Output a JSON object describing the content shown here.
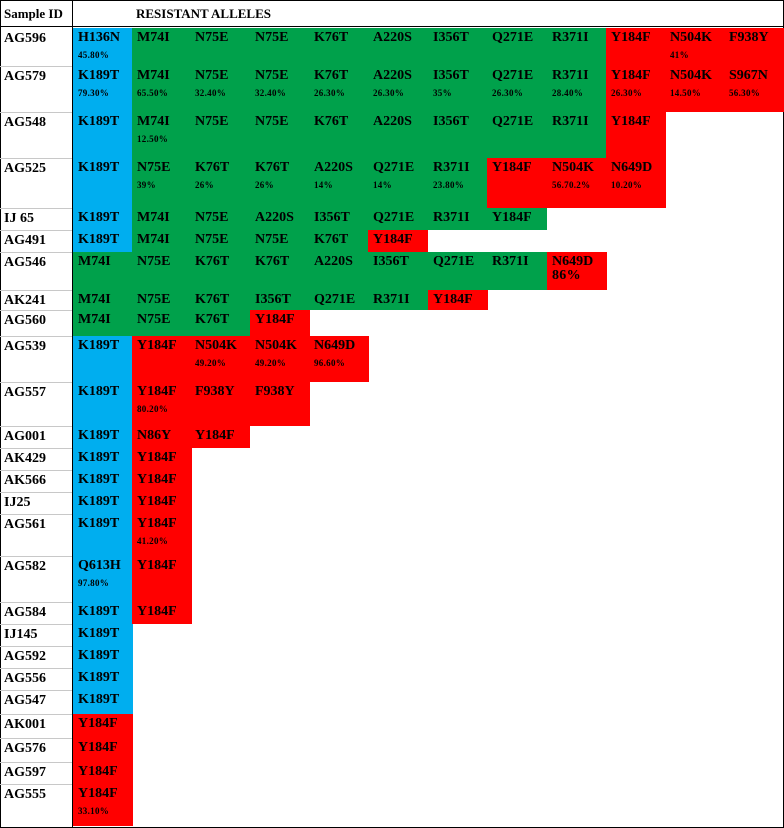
{
  "colors": {
    "green": "#00a14b",
    "blue": "#00aeef",
    "red": "#ff0000"
  },
  "header": {
    "sample_id": "Sample ID",
    "resistant_alleles": "RESISTANT  ALLELES"
  },
  "rows": [
    {
      "id": "AG596",
      "cells": [
        {
          "m": "H136N",
          "c": "blue",
          "p": "45.80%"
        },
        {
          "m": "M74I",
          "c": "green"
        },
        {
          "m": "N75E",
          "c": "green"
        },
        {
          "m": "N75E",
          "c": "green"
        },
        {
          "m": "K76T",
          "c": "green"
        },
        {
          "m": "A220S",
          "c": "green"
        },
        {
          "m": "I356T",
          "c": "green"
        },
        {
          "m": "Q271E",
          "c": "green"
        },
        {
          "m": "R371I",
          "c": "green"
        },
        {
          "m": "Y184F",
          "c": "red"
        },
        {
          "m": "N504K",
          "c": "red",
          "p": "41%"
        },
        {
          "m": "F938Y",
          "c": "red"
        }
      ]
    },
    {
      "id": "AG579",
      "cells": [
        {
          "m": "K189T",
          "c": "blue",
          "p": "79.30%"
        },
        {
          "m": "M74I",
          "c": "green",
          "p": "65.50%"
        },
        {
          "m": "N75E",
          "c": "green",
          "p": "32.40%"
        },
        {
          "m": "N75E",
          "c": "green",
          "p": "32.40%"
        },
        {
          "m": "K76T",
          "c": "green",
          "p": "26.30%"
        },
        {
          "m": "A220S",
          "c": "green",
          "p": "26.30%"
        },
        {
          "m": "I356T",
          "c": "green",
          "p": "35%"
        },
        {
          "m": "Q271E",
          "c": "green",
          "p": "26.30%"
        },
        {
          "m": "R371I",
          "c": "green",
          "p": "28.40%"
        },
        {
          "m": "Y184F",
          "c": "red",
          "p": "26.30%"
        },
        {
          "m": "N504K",
          "c": "red",
          "p": "14.50%"
        },
        {
          "m": "S967N",
          "c": "red",
          "p": "56.30%"
        }
      ]
    },
    {
      "id": "AG548",
      "cells": [
        {
          "m": "K189T",
          "c": "blue"
        },
        {
          "m": "M74I",
          "c": "green",
          "p": "12.50%"
        },
        {
          "m": "N75E",
          "c": "green"
        },
        {
          "m": "N75E",
          "c": "green"
        },
        {
          "m": "K76T",
          "c": "green"
        },
        {
          "m": "A220S",
          "c": "green"
        },
        {
          "m": "I356T",
          "c": "green"
        },
        {
          "m": "Q271E",
          "c": "green"
        },
        {
          "m": "R371I",
          "c": "green"
        },
        {
          "m": "Y184F",
          "c": "red"
        }
      ]
    },
    {
      "id": "AG525",
      "cells": [
        {
          "m": "K189T",
          "c": "blue"
        },
        {
          "m": "N75E",
          "c": "green",
          "p": "39%"
        },
        {
          "m": "K76T",
          "c": "green",
          "p": "26%"
        },
        {
          "m": "K76T",
          "c": "green",
          "p": "26%"
        },
        {
          "m": "A220S",
          "c": "green",
          "p": "14%"
        },
        {
          "m": "Q271E",
          "c": "green",
          "p": "14%"
        },
        {
          "m": "R371I",
          "c": "green",
          "p": "23.80%"
        },
        {
          "m": "Y184F",
          "c": "red"
        },
        {
          "m": "N504K",
          "c": "red",
          "p": "56.70.2%"
        },
        {
          "m": "N649D",
          "c": "red",
          "p": "10.20%"
        }
      ]
    },
    {
      "id": "IJ 65",
      "cells": [
        {
          "m": "K189T",
          "c": "blue"
        },
        {
          "m": "M74I",
          "c": "green"
        },
        {
          "m": "N75E",
          "c": "green"
        },
        {
          "m": "A220S",
          "c": "green"
        },
        {
          "m": "I356T",
          "c": "green"
        },
        {
          "m": "Q271E",
          "c": "green"
        },
        {
          "m": "R371I",
          "c": "green"
        },
        {
          "m": "Y184F",
          "c": "green"
        }
      ]
    },
    {
      "id": "AG491",
      "cells": [
        {
          "m": "K189T",
          "c": "blue"
        },
        {
          "m": "M74I",
          "c": "green"
        },
        {
          "m": "N75E",
          "c": "green"
        },
        {
          "m": "N75E",
          "c": "green"
        },
        {
          "m": "K76T",
          "c": "green"
        },
        {
          "m": "Y184F",
          "c": "red"
        }
      ]
    },
    {
      "id": "AG546",
      "cells": [
        {
          "m": "M74I",
          "c": "green"
        },
        {
          "m": "N75E",
          "c": "green"
        },
        {
          "m": "K76T",
          "c": "green"
        },
        {
          "m": "K76T",
          "c": "green"
        },
        {
          "m": "A220S",
          "c": "green"
        },
        {
          "m": "I356T",
          "c": "green"
        },
        {
          "m": "Q271E",
          "c": "green"
        },
        {
          "m": "R371I",
          "c": "green"
        },
        {
          "m": "N649D",
          "c": "red",
          "p": "86%",
          "big": true
        }
      ]
    },
    {
      "id": "AK241",
      "cells": [
        {
          "m": "M74I",
          "c": "green"
        },
        {
          "m": "N75E",
          "c": "green"
        },
        {
          "m": "K76T",
          "c": "green"
        },
        {
          "m": "I356T",
          "c": "green"
        },
        {
          "m": "Q271E",
          "c": "green"
        },
        {
          "m": "R371I",
          "c": "green"
        },
        {
          "m": "Y184F",
          "c": "red"
        }
      ]
    },
    {
      "id": "AG560",
      "cells": [
        {
          "m": "M74I",
          "c": "green"
        },
        {
          "m": "N75E",
          "c": "green"
        },
        {
          "m": "K76T",
          "c": "green"
        },
        {
          "m": "Y184F",
          "c": "red"
        }
      ]
    },
    {
      "id": "AG539",
      "cells": [
        {
          "m": "K189T",
          "c": "blue"
        },
        {
          "m": "Y184F",
          "c": "red"
        },
        {
          "m": "N504K",
          "c": "red",
          "p": "49.20%"
        },
        {
          "m": "N504K",
          "c": "red",
          "p": "49.20%"
        },
        {
          "m": "N649D",
          "c": "red",
          "p": "96.60%"
        }
      ]
    },
    {
      "id": "AG557",
      "cells": [
        {
          "m": "K189T",
          "c": "blue"
        },
        {
          "m": "Y184F",
          "c": "red",
          "p": "80.20%"
        },
        {
          "m": "F938Y",
          "c": "red"
        },
        {
          "m": "F938Y",
          "c": "red"
        }
      ]
    },
    {
      "id": "AG001",
      "cells": [
        {
          "m": "K189T",
          "c": "blue"
        },
        {
          "m": "N86Y",
          "c": "red"
        },
        {
          "m": "Y184F",
          "c": "red"
        }
      ]
    },
    {
      "id": "AK429",
      "cells": [
        {
          "m": "K189T",
          "c": "blue"
        },
        {
          "m": "Y184F",
          "c": "red"
        }
      ]
    },
    {
      "id": "AK566",
      "cells": [
        {
          "m": "K189T",
          "c": "blue"
        },
        {
          "m": "Y184F",
          "c": "red"
        }
      ]
    },
    {
      "id": "IJ25",
      "cells": [
        {
          "m": "K189T",
          "c": "blue"
        },
        {
          "m": "Y184F",
          "c": "red"
        }
      ]
    },
    {
      "id": "AG561",
      "cells": [
        {
          "m": "K189T",
          "c": "blue"
        },
        {
          "m": "Y184F",
          "c": "red",
          "p": "41.20%"
        }
      ]
    },
    {
      "id": "AG582",
      "cells": [
        {
          "m": "Q613H",
          "c": "blue",
          "p": "97.80%"
        },
        {
          "m": "Y184F",
          "c": "red"
        }
      ]
    },
    {
      "id": "AG584",
      "cells": [
        {
          "m": "K189T",
          "c": "blue"
        },
        {
          "m": "Y184F",
          "c": "red"
        }
      ]
    },
    {
      "id": "IJ145",
      "cells": [
        {
          "m": "K189T",
          "c": "blue"
        }
      ]
    },
    {
      "id": "AG592",
      "cells": [
        {
          "m": "K189T",
          "c": "blue"
        }
      ]
    },
    {
      "id": "AG556",
      "cells": [
        {
          "m": "K189T",
          "c": "blue"
        }
      ]
    },
    {
      "id": "AG547",
      "cells": [
        {
          "m": "K189T",
          "c": "blue"
        }
      ]
    },
    {
      "id": "AK001",
      "cells": [
        {
          "m": "Y184F",
          "c": "red"
        }
      ]
    },
    {
      "id": "AG576",
      "cells": [
        {
          "m": "Y184F",
          "c": "red"
        }
      ]
    },
    {
      "id": "AG597",
      "cells": [
        {
          "m": "Y184F",
          "c": "red"
        }
      ]
    },
    {
      "id": "AG555",
      "cells": [
        {
          "m": "Y184F",
          "c": "red",
          "p": "33.10%"
        }
      ]
    }
  ]
}
